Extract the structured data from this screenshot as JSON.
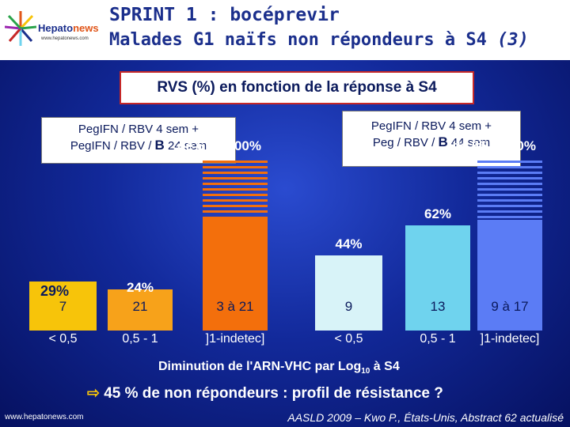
{
  "header": {
    "logo_name_main": "Hepato",
    "logo_name_accent": "news",
    "logo_url": "www.hepatonews.com",
    "title_line1": "SPRINT 1 : bocéprevir",
    "title_line2": "Malades G1 naïfs non répondeurs à S4",
    "title_line2_suffix": "(3)"
  },
  "subtitle": "RVS (%) en fonction de la réponse à S4",
  "arms": {
    "left": {
      "line1": "PegIFN / RBV 4 sem +",
      "line2_prefix": "PegIFN / RBV / ",
      "line2_drug": "B",
      "line2_suffix": " 24 sem"
    },
    "right": {
      "line1": "PegIFN / RBV 4 sem +",
      "line2_prefix": "Peg / RBV / ",
      "line2_drug": "B",
      "line2_suffix": " 44 sem"
    }
  },
  "chart_data": {
    "type": "bar",
    "title": "RVS (%) en fonction de la réponse à S4",
    "xlabel": "Diminution de l'ARN-VHC par Log10 à S4",
    "ylabel": "",
    "ylim": [
      0,
      100
    ],
    "groups": [
      "PegIFN / RBV 4 sem + PegIFN / RBV / B 24 sem",
      "PegIFN / RBV 4 sem + Peg / RBV / B 44 sem"
    ],
    "categories": [
      "< 0,5",
      "0,5 - 1",
      "]1-indetec]",
      "< 0,5",
      "0,5 - 1",
      "]1-indetec]"
    ],
    "values": [
      29,
      24,
      67,
      44,
      62,
      65
    ],
    "value_labels": [
      "29%",
      "24%",
      "de 67 à 100%",
      "44%",
      "62%",
      "de 65 à 100%"
    ],
    "n_labels": [
      "7",
      "21",
      "3 à 21",
      "9",
      "13",
      "9 à 17"
    ],
    "range_max": [
      null,
      null,
      100,
      null,
      null,
      100
    ],
    "colors": [
      "#f7c40a",
      "#f7a21a",
      "#f36f0c",
      "#d8f3f8",
      "#6fd3ee",
      "#5b7cf5"
    ],
    "stripe_colors": [
      null,
      null,
      "#f36f0c",
      null,
      null,
      "#5b7cf5"
    ]
  },
  "axis": {
    "xlabel_main": "Diminution de l'ARN-VHC par Log",
    "xlabel_sub": "10",
    "xlabel_end": " à S4"
  },
  "conclusion": {
    "arrow": "⇨",
    "text": "45 % de non répondeurs : profil de résistance ?"
  },
  "footer": {
    "site": "www.hepatonews.com",
    "citation": "AASLD 2009 – Kwo P., États-Unis, Abstract 62 actualisé"
  }
}
